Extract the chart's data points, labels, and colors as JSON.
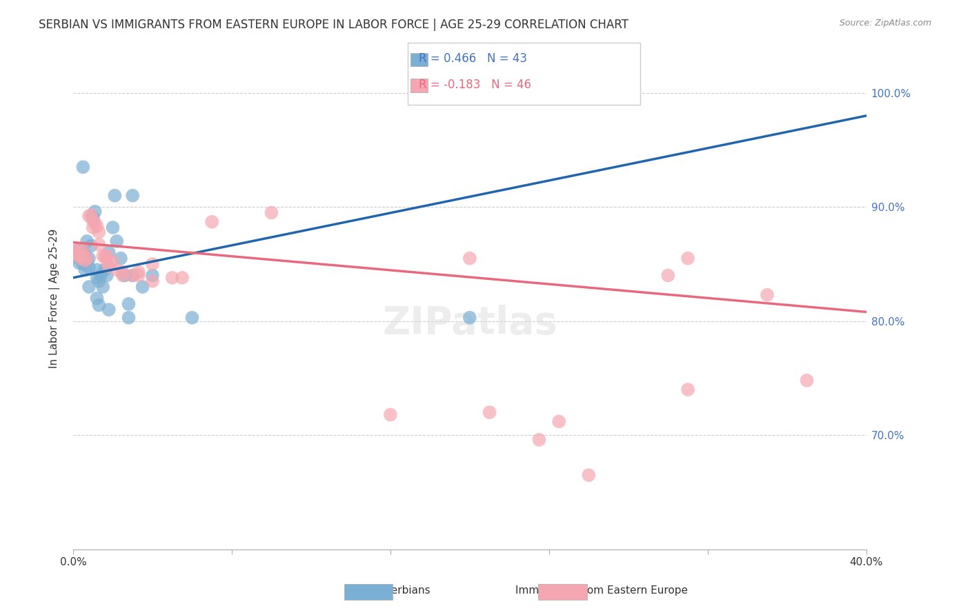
{
  "title": "SERBIAN VS IMMIGRANTS FROM EASTERN EUROPE IN LABOR FORCE | AGE 25-29 CORRELATION CHART",
  "source": "Source: ZipAtlas.com",
  "xlabel": "",
  "ylabel": "In Labor Force | Age 25-29",
  "xlim": [
    0.0,
    0.4
  ],
  "ylim": [
    0.6,
    1.04
  ],
  "yticks": [
    0.7,
    0.8,
    0.9,
    1.0
  ],
  "ytick_labels": [
    "70.0%",
    "80.0%",
    "90.0%",
    "100.0%"
  ],
  "xticks": [
    0.0,
    0.08,
    0.16,
    0.24,
    0.32,
    0.4
  ],
  "xtick_labels": [
    "0.0%",
    "",
    "",
    "",
    "",
    "40.0%"
  ],
  "r_blue": 0.466,
  "n_blue": 43,
  "r_pink": -0.183,
  "n_pink": 46,
  "blue_color": "#7bafd4",
  "pink_color": "#f4a7b0",
  "blue_line_color": "#2166ac",
  "pink_line_color": "#e8697d",
  "title_color": "#333333",
  "axis_label_color": "#333333",
  "tick_color_right": "#4472c4",
  "watermark": "ZIPatlas",
  "blue_scatter": [
    [
      0.001,
      0.856
    ],
    [
      0.002,
      0.862
    ],
    [
      0.003,
      0.858
    ],
    [
      0.003,
      0.851
    ],
    [
      0.004,
      0.86
    ],
    [
      0.004,
      0.855
    ],
    [
      0.005,
      0.863
    ],
    [
      0.005,
      0.85
    ],
    [
      0.006,
      0.845
    ],
    [
      0.006,
      0.858
    ],
    [
      0.007,
      0.853
    ],
    [
      0.007,
      0.87
    ],
    [
      0.008,
      0.847
    ],
    [
      0.008,
      0.855
    ],
    [
      0.009,
      0.866
    ],
    [
      0.01,
      0.891
    ],
    [
      0.011,
      0.896
    ],
    [
      0.012,
      0.845
    ],
    [
      0.012,
      0.838
    ],
    [
      0.013,
      0.835
    ],
    [
      0.014,
      0.84
    ],
    [
      0.015,
      0.83
    ],
    [
      0.016,
      0.845
    ],
    [
      0.017,
      0.84
    ],
    [
      0.018,
      0.86
    ],
    [
      0.02,
      0.882
    ],
    [
      0.022,
      0.87
    ],
    [
      0.024,
      0.855
    ],
    [
      0.026,
      0.84
    ],
    [
      0.03,
      0.84
    ],
    [
      0.035,
      0.83
    ],
    [
      0.04,
      0.84
    ],
    [
      0.005,
      0.935
    ],
    [
      0.021,
      0.91
    ],
    [
      0.03,
      0.91
    ],
    [
      0.008,
      0.83
    ],
    [
      0.012,
      0.82
    ],
    [
      0.013,
      0.814
    ],
    [
      0.018,
      0.81
    ],
    [
      0.028,
      0.815
    ],
    [
      0.028,
      0.803
    ],
    [
      0.06,
      0.803
    ],
    [
      0.2,
      0.803
    ]
  ],
  "pink_scatter": [
    [
      0.001,
      0.862
    ],
    [
      0.002,
      0.858
    ],
    [
      0.003,
      0.857
    ],
    [
      0.003,
      0.862
    ],
    [
      0.004,
      0.855
    ],
    [
      0.005,
      0.862
    ],
    [
      0.005,
      0.857
    ],
    [
      0.006,
      0.853
    ],
    [
      0.007,
      0.855
    ],
    [
      0.008,
      0.892
    ],
    [
      0.009,
      0.893
    ],
    [
      0.01,
      0.888
    ],
    [
      0.01,
      0.882
    ],
    [
      0.011,
      0.886
    ],
    [
      0.012,
      0.883
    ],
    [
      0.013,
      0.867
    ],
    [
      0.013,
      0.878
    ],
    [
      0.015,
      0.857
    ],
    [
      0.016,
      0.857
    ],
    [
      0.017,
      0.853
    ],
    [
      0.017,
      0.857
    ],
    [
      0.018,
      0.848
    ],
    [
      0.02,
      0.852
    ],
    [
      0.022,
      0.845
    ],
    [
      0.025,
      0.843
    ],
    [
      0.025,
      0.84
    ],
    [
      0.03,
      0.84
    ],
    [
      0.033,
      0.843
    ],
    [
      0.033,
      0.84
    ],
    [
      0.04,
      0.85
    ],
    [
      0.04,
      0.835
    ],
    [
      0.05,
      0.838
    ],
    [
      0.055,
      0.838
    ],
    [
      0.07,
      0.887
    ],
    [
      0.1,
      0.895
    ],
    [
      0.2,
      0.855
    ],
    [
      0.3,
      0.84
    ],
    [
      0.31,
      0.855
    ],
    [
      0.35,
      0.823
    ],
    [
      0.16,
      0.718
    ],
    [
      0.21,
      0.72
    ],
    [
      0.235,
      0.696
    ],
    [
      0.245,
      0.712
    ],
    [
      0.26,
      0.665
    ],
    [
      0.31,
      0.74
    ],
    [
      0.37,
      0.748
    ]
  ],
  "blue_line_x": [
    0.0,
    0.4
  ],
  "blue_line_y": [
    0.838,
    0.98
  ],
  "pink_line_x": [
    0.0,
    0.4
  ],
  "pink_line_y": [
    0.869,
    0.808
  ]
}
